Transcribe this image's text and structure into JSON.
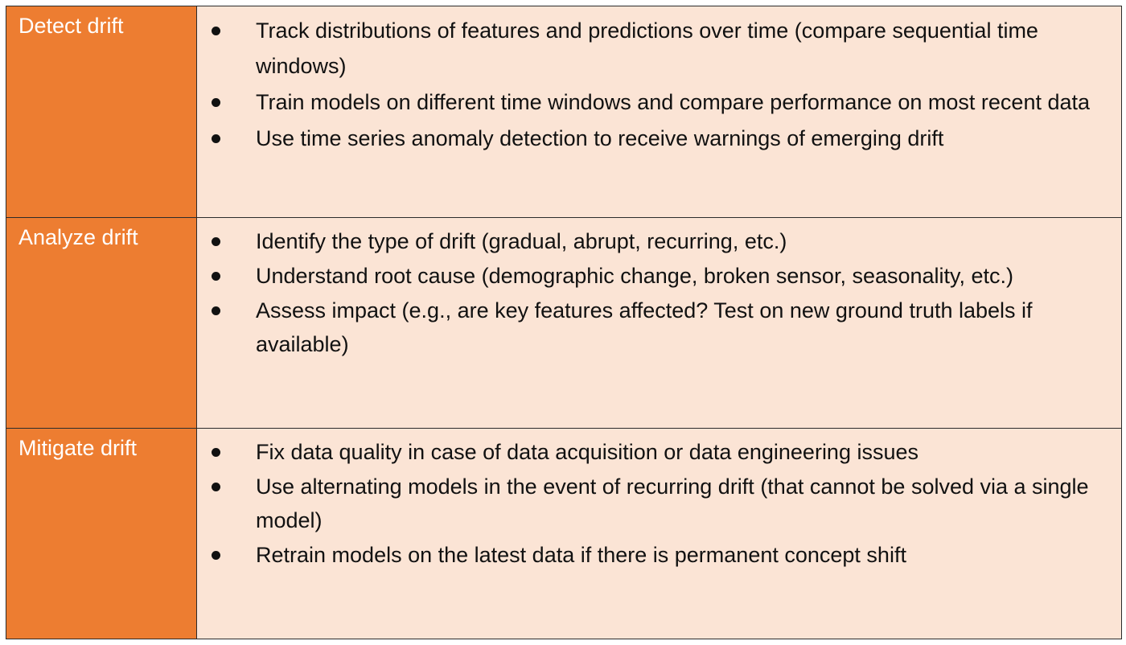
{
  "colors": {
    "label_background": "#ed7d31",
    "content_background": "#fbe4d5",
    "label_text": "#ffffff",
    "border": "#2b2b2b"
  },
  "rows": [
    {
      "label": "Detect drift",
      "bullets": [
        "Track distributions of features and predictions over time (compare sequential time windows)",
        "Train models on different time windows and compare performance on most recent data",
        "Use time series anomaly detection to receive warnings of emerging drift"
      ]
    },
    {
      "label": "Analyze drift",
      "bullets": [
        "Identify the type of drift (gradual, abrupt, recurring, etc.)",
        "Understand root cause (demographic change, broken sensor, seasonality, etc.)",
        "Assess impact (e.g., are key features affected? Test on new ground truth labels if available)"
      ]
    },
    {
      "label": "Mitigate drift",
      "bullets": [
        "Fix data quality in case of data acquisition or data engineering issues",
        "Use alternating models in the event of recurring drift (that cannot be solved via a single model)",
        "Retrain models on the latest data if there is permanent concept shift"
      ]
    }
  ]
}
